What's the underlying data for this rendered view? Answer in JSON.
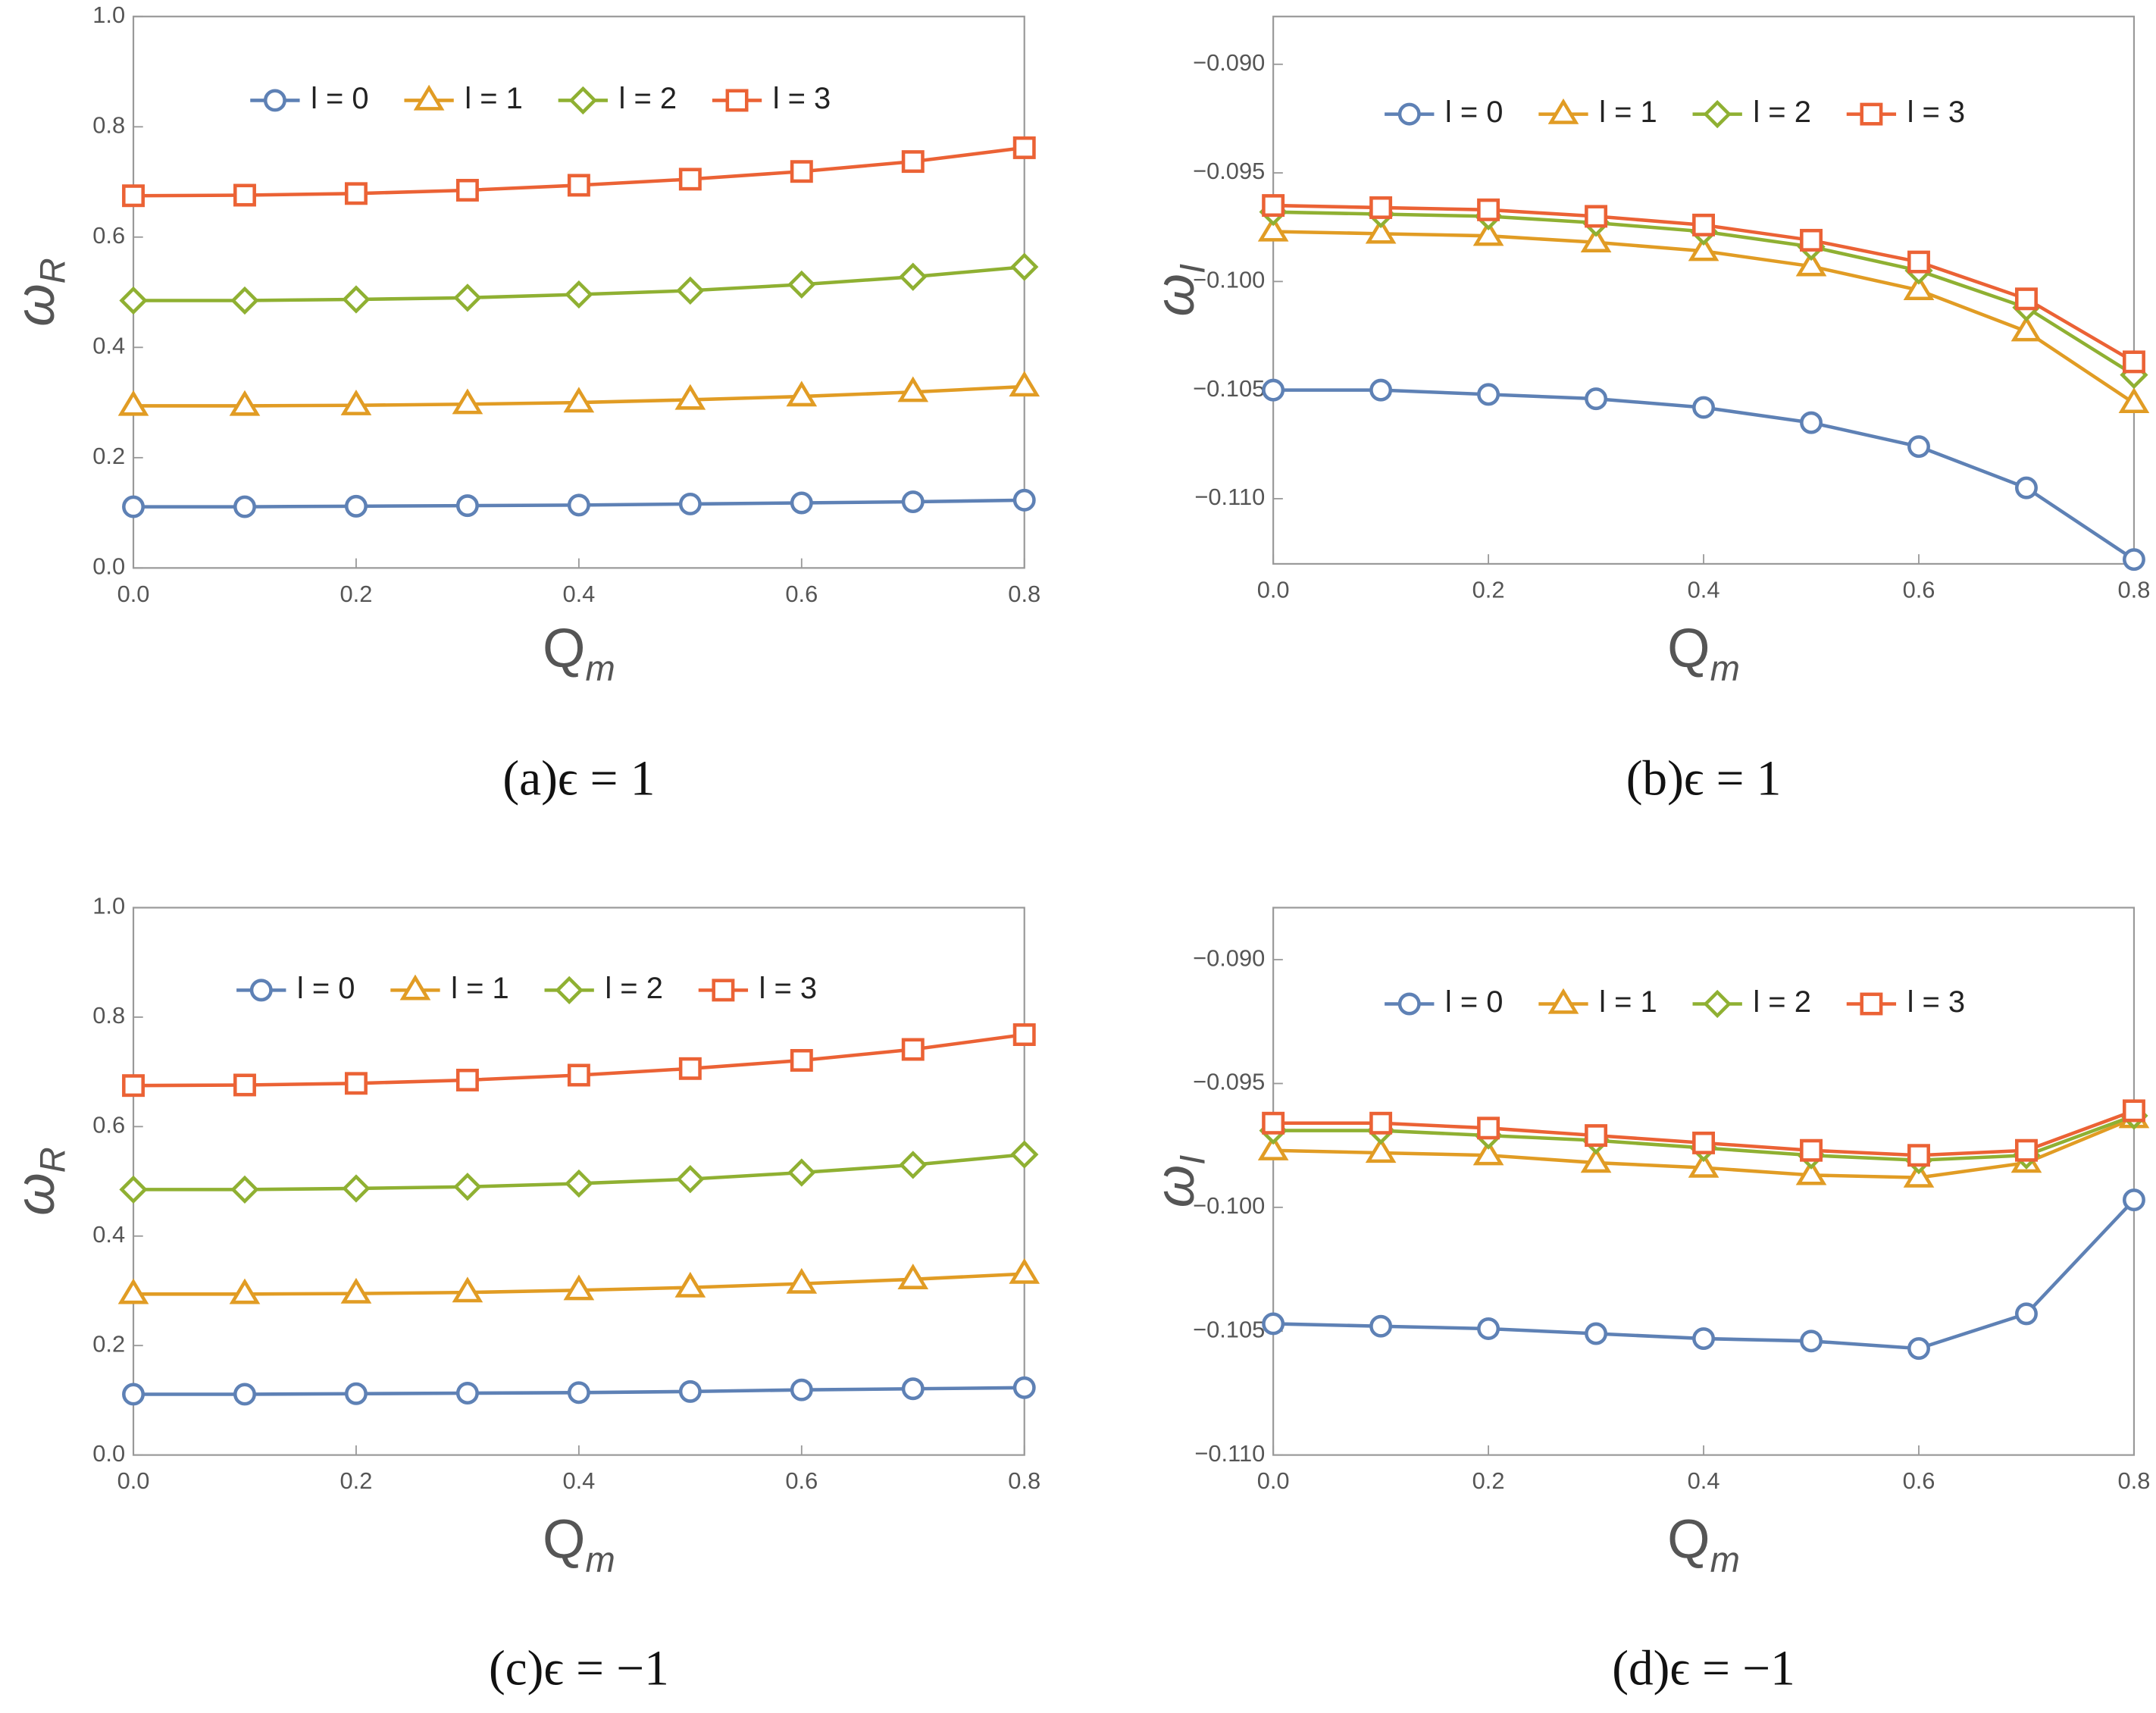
{
  "chart_data": [
    {
      "type": "line",
      "caption": "(a)ϵ = 1",
      "xlabel": "Q",
      "xlabel_sub": "m",
      "ylabel": "ω",
      "ylabel_sub": "R",
      "x": [
        0,
        0.1,
        0.2,
        0.3,
        0.4,
        0.5,
        0.6,
        0.7,
        0.8
      ],
      "xlim": [
        0,
        0.8
      ],
      "xticks": [
        {
          "value": 0,
          "label": "0.0"
        },
        0.2,
        0.4,
        0.6,
        0.8
      ],
      "ylim": [
        0,
        1
      ],
      "yticks": [
        {
          "value": 0,
          "label": "0.0"
        },
        0.2,
        0.4,
        0.6,
        0.8,
        {
          "value": 1,
          "label": "1.0"
        }
      ],
      "series": [
        {
          "name": "l = 0",
          "color": "#5e81b5",
          "marker": "circle",
          "values": [
            0.111,
            0.111,
            0.112,
            0.113,
            0.114,
            0.116,
            0.118,
            0.12,
            0.123
          ]
        },
        {
          "name": "l = 1",
          "color": "#e19c24",
          "marker": "triangle",
          "values": [
            0.294,
            0.294,
            0.295,
            0.297,
            0.3,
            0.305,
            0.311,
            0.319,
            0.329
          ]
        },
        {
          "name": "l = 2",
          "color": "#8fb032",
          "marker": "diamond",
          "values": [
            0.485,
            0.485,
            0.487,
            0.49,
            0.496,
            0.503,
            0.514,
            0.528,
            0.546
          ]
        },
        {
          "name": "l = 3",
          "color": "#eb6235",
          "marker": "square",
          "values": [
            0.675,
            0.676,
            0.679,
            0.685,
            0.694,
            0.705,
            0.719,
            0.737,
            0.762
          ]
        }
      ]
    },
    {
      "type": "line",
      "caption": "(b)ϵ = 1",
      "xlabel": "Q",
      "xlabel_sub": "m",
      "ylabel": "ω",
      "ylabel_sub": "I",
      "x": [
        0,
        0.1,
        0.2,
        0.3,
        0.4,
        0.5,
        0.6,
        0.7,
        0.8
      ],
      "xlim": [
        0,
        0.8
      ],
      "xticks": [
        {
          "value": 0,
          "label": "0.0"
        },
        0.2,
        0.4,
        0.6,
        0.8
      ],
      "ylim": [
        -0.113,
        -0.0878
      ],
      "yticks": [
        {
          "value": -0.11,
          "label": "−0.110"
        },
        {
          "value": -0.105,
          "label": "−0.105"
        },
        {
          "value": -0.1,
          "label": "−0.100"
        },
        {
          "value": -0.095,
          "label": "−0.095"
        },
        {
          "value": -0.09,
          "label": "−0.090"
        }
      ],
      "series": [
        {
          "name": "l = 0",
          "color": "#5e81b5",
          "marker": "circle",
          "values": [
            -0.105,
            -0.105,
            -0.1052,
            -0.1054,
            -0.1058,
            -0.1065,
            -0.1076,
            -0.1095,
            -0.1128
          ]
        },
        {
          "name": "l = 1",
          "color": "#e19c24",
          "marker": "triangle",
          "values": [
            -0.0977,
            -0.0978,
            -0.0979,
            -0.0982,
            -0.0986,
            -0.0993,
            -0.1004,
            -0.1023,
            -0.1056
          ]
        },
        {
          "name": "l = 2",
          "color": "#8fb032",
          "marker": "diamond",
          "values": [
            -0.0968,
            -0.0969,
            -0.097,
            -0.0973,
            -0.0977,
            -0.0984,
            -0.0995,
            -0.1012,
            -0.1043
          ]
        },
        {
          "name": "l = 3",
          "color": "#eb6235",
          "marker": "square",
          "values": [
            -0.0965,
            -0.0966,
            -0.0967,
            -0.097,
            -0.0974,
            -0.0981,
            -0.0991,
            -0.1008,
            -0.1037
          ]
        }
      ]
    },
    {
      "type": "line",
      "caption": "(c)ϵ = −1",
      "xlabel": "Q",
      "xlabel_sub": "m",
      "ylabel": "ω",
      "ylabel_sub": "R",
      "x": [
        0,
        0.1,
        0.2,
        0.3,
        0.4,
        0.5,
        0.6,
        0.7,
        0.8
      ],
      "xlim": [
        0,
        0.8
      ],
      "xticks": [
        {
          "value": 0,
          "label": "0.0"
        },
        0.2,
        0.4,
        0.6,
        0.8
      ],
      "ylim": [
        0,
        1
      ],
      "yticks": [
        {
          "value": 0,
          "label": "0.0"
        },
        0.2,
        0.4,
        0.6,
        0.8,
        {
          "value": 1,
          "label": "1.0"
        }
      ],
      "series": [
        {
          "name": "l = 0",
          "color": "#5e81b5",
          "marker": "circle",
          "values": [
            0.111,
            0.111,
            0.112,
            0.113,
            0.114,
            0.116,
            0.119,
            0.121,
            0.123
          ]
        },
        {
          "name": "l = 1",
          "color": "#e19c24",
          "marker": "triangle",
          "values": [
            0.294,
            0.294,
            0.295,
            0.297,
            0.301,
            0.306,
            0.313,
            0.321,
            0.331
          ]
        },
        {
          "name": "l = 2",
          "color": "#8fb032",
          "marker": "diamond",
          "values": [
            0.485,
            0.485,
            0.487,
            0.49,
            0.496,
            0.504,
            0.516,
            0.53,
            0.549
          ]
        },
        {
          "name": "l = 3",
          "color": "#eb6235",
          "marker": "square",
          "values": [
            0.675,
            0.676,
            0.679,
            0.685,
            0.694,
            0.706,
            0.721,
            0.741,
            0.768
          ]
        }
      ]
    },
    {
      "type": "line",
      "caption": "(d)ϵ = −1",
      "xlabel": "Q",
      "xlabel_sub": "m",
      "ylabel": "ω",
      "ylabel_sub": "I",
      "x": [
        0,
        0.1,
        0.2,
        0.3,
        0.4,
        0.5,
        0.6,
        0.7,
        0.8
      ],
      "xlim": [
        0,
        0.8
      ],
      "xticks": [
        {
          "value": 0,
          "label": "0.0"
        },
        0.2,
        0.4,
        0.6,
        0.8
      ],
      "ylim": [
        -0.11,
        -0.0879
      ],
      "yticks": [
        {
          "value": -0.11,
          "label": "−0.110"
        },
        {
          "value": -0.105,
          "label": "−0.105"
        },
        {
          "value": -0.1,
          "label": "−0.100"
        },
        {
          "value": -0.095,
          "label": "−0.095"
        },
        {
          "value": -0.09,
          "label": "−0.090"
        }
      ],
      "series": [
        {
          "name": "l = 0",
          "color": "#5e81b5",
          "marker": "circle",
          "values": [
            -0.1047,
            -0.1048,
            -0.1049,
            -0.1051,
            -0.1053,
            -0.1054,
            -0.1057,
            -0.1043,
            -0.0997
          ]
        },
        {
          "name": "l = 1",
          "color": "#e19c24",
          "marker": "triangle",
          "values": [
            -0.0977,
            -0.0978,
            -0.0979,
            -0.0982,
            -0.0984,
            -0.0987,
            -0.0988,
            -0.0982,
            -0.0964
          ]
        },
        {
          "name": "l = 2",
          "color": "#8fb032",
          "marker": "diamond",
          "values": [
            -0.0969,
            -0.0969,
            -0.0971,
            -0.0973,
            -0.0976,
            -0.0979,
            -0.0981,
            -0.0979,
            -0.0963
          ]
        },
        {
          "name": "l = 3",
          "color": "#eb6235",
          "marker": "square",
          "values": [
            -0.0966,
            -0.0966,
            -0.0968,
            -0.0971,
            -0.0974,
            -0.0977,
            -0.0979,
            -0.0977,
            -0.0961
          ]
        }
      ]
    }
  ]
}
